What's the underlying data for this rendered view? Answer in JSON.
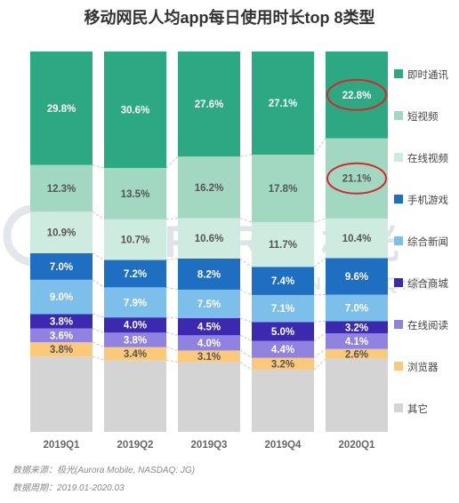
{
  "chart_data": {
    "type": "stacked_bar",
    "title": "移动网民人均app每日使用时长top 8类型",
    "categories": [
      "2019Q1",
      "2019Q2",
      "2019Q3",
      "2019Q4",
      "2020Q1"
    ],
    "series": [
      {
        "name": "其它",
        "color": "#d4d4d4",
        "values": [
          null,
          null,
          null,
          null,
          null
        ]
      },
      {
        "name": "浏览器",
        "color": "#fbc97a",
        "values": [
          3.8,
          3.4,
          3.1,
          3.2,
          2.6
        ]
      },
      {
        "name": "在线阅读",
        "color": "#8f82e0",
        "values": [
          3.6,
          3.8,
          4.0,
          4.4,
          4.1
        ]
      },
      {
        "name": "综合商城",
        "color": "#3b2ab0",
        "values": [
          3.8,
          4.0,
          4.5,
          5.0,
          3.2
        ]
      },
      {
        "name": "综合新闻",
        "color": "#7cbfea",
        "values": [
          9.0,
          7.9,
          7.5,
          7.1,
          7.0
        ]
      },
      {
        "name": "手机游戏",
        "color": "#1e6fc2",
        "values": [
          7.0,
          7.2,
          8.2,
          7.4,
          9.6
        ]
      },
      {
        "name": "在线视频",
        "color": "#cdebdf",
        "values": [
          10.9,
          10.7,
          10.6,
          11.7,
          10.4
        ]
      },
      {
        "name": "短视频",
        "color": "#a2d8c2",
        "values": [
          12.3,
          13.5,
          16.2,
          17.8,
          21.1
        ]
      },
      {
        "name": "即时通讯",
        "color": "#2ca882",
        "values": [
          29.8,
          30.6,
          27.6,
          27.1,
          22.8
        ]
      }
    ],
    "highlighted": [
      {
        "series": "即时通讯",
        "category": "2020Q1"
      },
      {
        "series": "短视频",
        "category": "2020Q1"
      }
    ],
    "value_suffix": "%",
    "legend_position": "right",
    "grid": false
  },
  "watermark": {
    "brand": "URORA",
    "cn": "极光",
    "ticker": "NASDAQ:JG"
  },
  "footer": {
    "source": "数据来源：极光(Aurora Mobile, NASDAQ: JG)",
    "period": "数据周期：2019.01-2020.03"
  },
  "colors": {
    "highlight_ring": "#d9262c",
    "connector": "#c8c8c8"
  }
}
